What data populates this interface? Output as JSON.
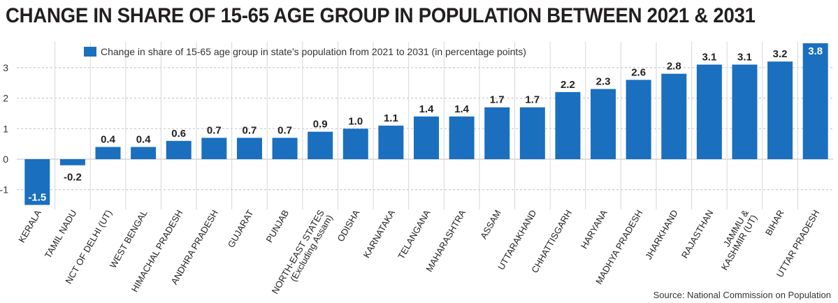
{
  "title": "CHANGE IN SHARE OF 15-65 AGE GROUP IN POPULATION BETWEEN 2021 & 2031",
  "source": "Source: National Commission on Population",
  "colors": {
    "bar": "#1a6fbf",
    "text": "#231f20",
    "grid": "#bfbfbf"
  },
  "chart_data": {
    "type": "bar",
    "title": "CHANGE IN SHARE OF 15-65 AGE GROUP IN POPULATION BETWEEN 2021 & 2031",
    "xlabel": "",
    "ylabel": "",
    "ylim": [
      -1.5,
      3.8
    ],
    "yticks": [
      -1,
      0,
      1,
      2,
      3
    ],
    "grid": true,
    "legend": {
      "position": "top-left",
      "entries": [
        "Change in share of 15-65 age group in state's population from 2021 to 2031 (in percentage points)"
      ]
    },
    "categories": [
      "KERALA",
      "TAMIL NADU",
      "NCT OF DELHI (UT)",
      "WEST BENGAL",
      "HIMACHAL PRADESH",
      "ANDHRA PRADESH",
      "GUJARAT",
      "PUNJAB",
      "NORTH-EAST STATES (Excluding Assam)",
      "ODISHA",
      "KARNATAKA",
      "TELANGANA",
      "MAHARASHTRA",
      "ASSAM",
      "UTTARAKHAND",
      "CHHATTISGARH",
      "HARYANA",
      "MADHYA PRADESH",
      "JHARKHAND",
      "RAJASTHAN",
      "JAMMU & KASHMIR (UT)",
      "BIHAR",
      "UTTAR PRADESH"
    ],
    "category_lines": [
      [
        "KERALA"
      ],
      [
        "TAMIL NADU"
      ],
      [
        "NCT OF DELHI (UT)"
      ],
      [
        "WEST BENGAL"
      ],
      [
        "HIMACHAL PRADESH"
      ],
      [
        "ANDHRA PRADESH"
      ],
      [
        "GUJARAT"
      ],
      [
        "PUNJAB"
      ],
      [
        "NORTH-EAST STATES",
        "(Excluding Assam)"
      ],
      [
        "ODISHA"
      ],
      [
        "KARNATAKA"
      ],
      [
        "TELANGANA"
      ],
      [
        "MAHARASHTRA"
      ],
      [
        "ASSAM"
      ],
      [
        "UTTARAKHAND"
      ],
      [
        "CHHATTISGARH"
      ],
      [
        "HARYANA"
      ],
      [
        "MADHYA PRADESH"
      ],
      [
        "JHARKHAND"
      ],
      [
        "RAJASTHAN"
      ],
      [
        "JAMMU &",
        "KASHMIR (UT)"
      ],
      [
        "BIHAR"
      ],
      [
        "UTTAR PRADESH"
      ]
    ],
    "series": [
      {
        "name": "Change in share of 15-65 age group in state's population from 2021 to 2031 (in percentage points)",
        "values": [
          -1.5,
          -0.2,
          0.4,
          0.4,
          0.6,
          0.7,
          0.7,
          0.7,
          0.9,
          1.0,
          1.1,
          1.4,
          1.4,
          1.7,
          1.7,
          2.2,
          2.3,
          2.6,
          2.8,
          3.1,
          3.1,
          3.2,
          3.8
        ],
        "labels": [
          "-1.5",
          "-0.2",
          "0.4",
          "0.4",
          "0.6",
          "0.7",
          "0.7",
          "0.7",
          "0.9",
          "1.0",
          "1.1",
          "1.4",
          "1.4",
          "1.7",
          "1.7",
          "2.2",
          "2.3",
          "2.6",
          "2.8",
          "3.1",
          "3.1",
          "3.2",
          "3.8"
        ]
      }
    ]
  }
}
